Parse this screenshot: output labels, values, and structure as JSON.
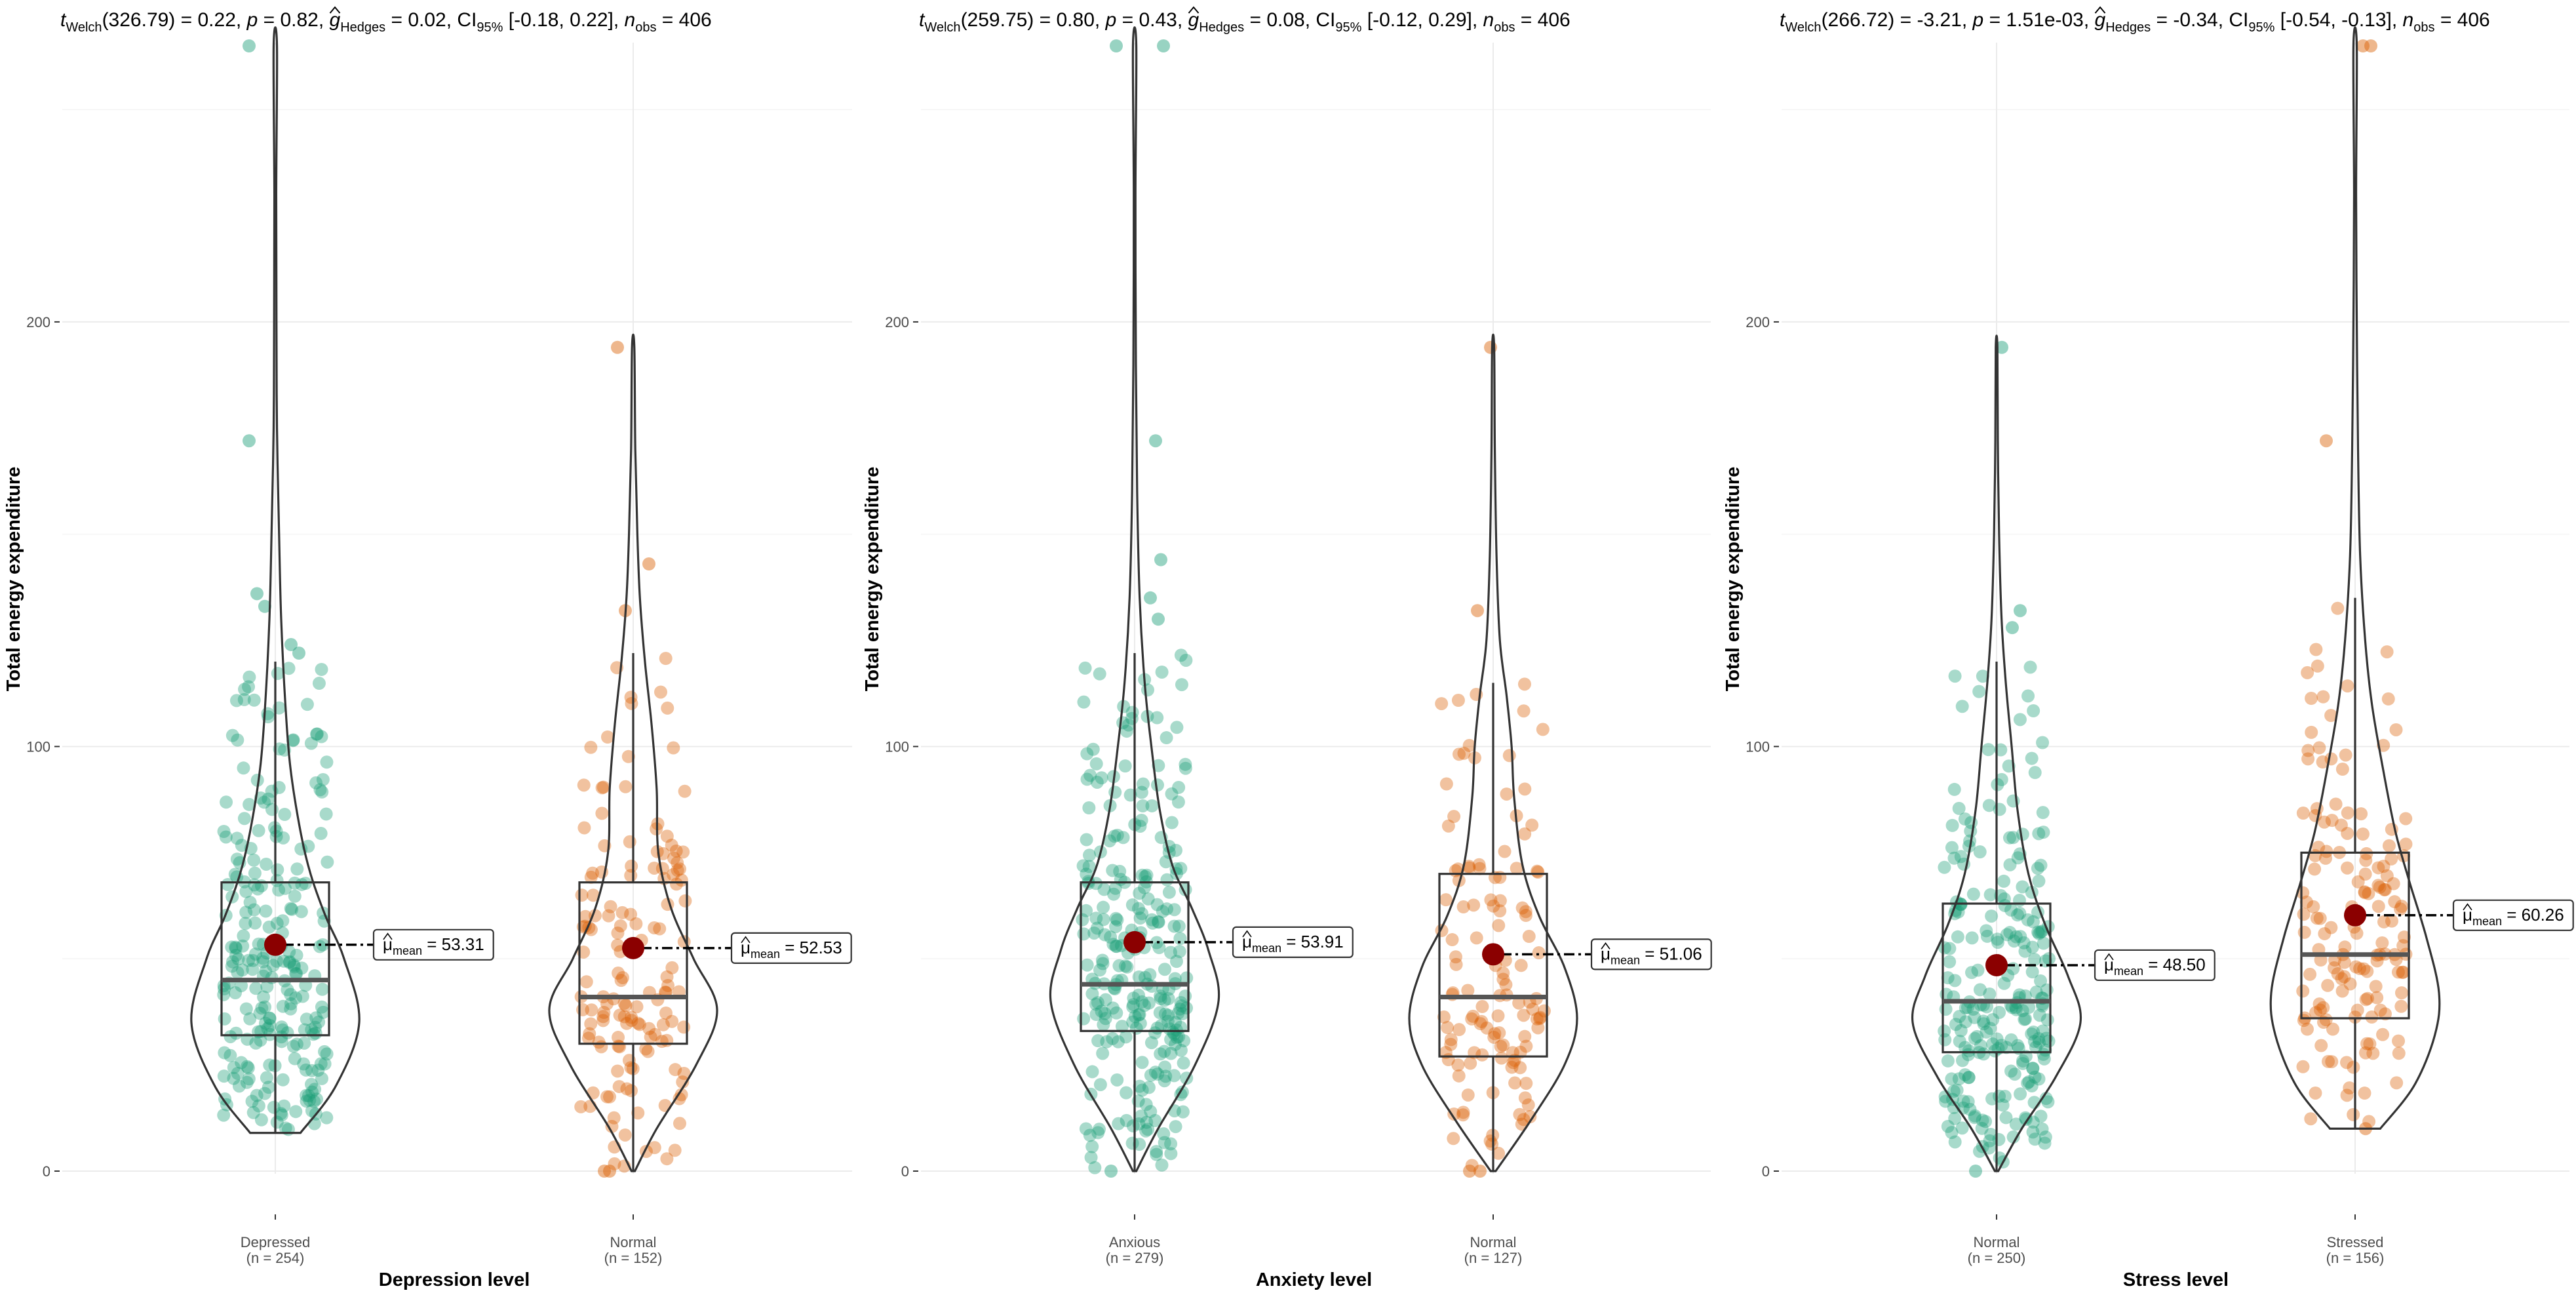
{
  "figure": {
    "y_axis_label": "Total energy expenditure"
  },
  "colors": {
    "group1": "#1b9e77",
    "group2": "#d95f02",
    "mean_point": "#8b0000",
    "grid": "#ebebeb"
  },
  "chart_data": [
    {
      "type": "violin-box-scatter",
      "title": {
        "t_label": "t",
        "t_sub": "Welch",
        "t_value": "(326.79) = 0.22, ",
        "p_label": "p",
        "p_value": " = 0.82, ",
        "g_label": "g",
        "g_sub": "Hedges",
        "g_value": " = 0.02, CI",
        "ci_sub": "95%",
        "ci_value": " [-0.18, 0.22], ",
        "n_label": "n",
        "n_sub": "obs",
        "n_value": " = 406"
      },
      "xlabel": "Depression level",
      "ylabel": "Total energy expenditure",
      "ylim": [
        0,
        265
      ],
      "yticks": [
        0,
        100,
        200
      ],
      "groups": [
        {
          "name": "Depressed",
          "n_label": "(n = 254)",
          "n": 254,
          "mean": 53.31,
          "mean_text": "53.31",
          "median": 45,
          "q1": 32,
          "q3": 68,
          "whisker_low": 9,
          "whisker_high": 120,
          "min": 9,
          "max": 265,
          "color": "#1b9e77",
          "outliers": [
            {
              "y": 265,
              "dx": -0.5
            },
            {
              "y": 172,
              "dx": -0.5
            },
            {
              "y": 136,
              "dx": -0.35
            },
            {
              "y": 133,
              "dx": -0.2
            },
            {
              "y": 124,
              "dx": 0.3
            },
            {
              "y": 122,
              "dx": 0.45
            }
          ],
          "density": [
            [
              9,
              0.3
            ],
            [
              20,
              0.72
            ],
            [
              35,
              1.0
            ],
            [
              50,
              0.82
            ],
            [
              60,
              0.6
            ],
            [
              70,
              0.42
            ],
            [
              80,
              0.3
            ],
            [
              95,
              0.18
            ],
            [
              110,
              0.12
            ],
            [
              130,
              0.07
            ],
            [
              150,
              0.045
            ],
            [
              175,
              0.02
            ],
            [
              200,
              0.014
            ],
            [
              230,
              0.011
            ],
            [
              265,
              0.02
            ]
          ]
        },
        {
          "name": "Normal",
          "n_label": "(n = 152)",
          "n": 152,
          "mean": 52.53,
          "mean_text": "52.53",
          "median": 41,
          "q1": 30,
          "q3": 68,
          "whisker_low": 0,
          "whisker_high": 122,
          "min": 0,
          "max": 194,
          "color": "#d95f02",
          "outliers": [
            {
              "y": 194,
              "dx": -0.3
            },
            {
              "y": 143,
              "dx": 0.3
            },
            {
              "y": 132,
              "dx": -0.15
            },
            {
              "y": 0,
              "dx": -0.55
            },
            {
              "y": 0,
              "dx": -0.45
            }
          ],
          "density": [
            [
              0,
              0.02
            ],
            [
              10,
              0.28
            ],
            [
              25,
              0.75
            ],
            [
              38,
              1.0
            ],
            [
              50,
              0.72
            ],
            [
              62,
              0.45
            ],
            [
              75,
              0.3
            ],
            [
              90,
              0.28
            ],
            [
              105,
              0.22
            ],
            [
              120,
              0.14
            ],
            [
              135,
              0.08
            ],
            [
              150,
              0.05
            ],
            [
              170,
              0.025
            ],
            [
              194,
              0.014
            ]
          ]
        }
      ]
    },
    {
      "type": "violin-box-scatter",
      "title": {
        "t_label": "t",
        "t_sub": "Welch",
        "t_value": "(259.75) = 0.80, ",
        "p_label": "p",
        "p_value": " = 0.43, ",
        "g_label": "g",
        "g_sub": "Hedges",
        "g_value": " = 0.08, CI",
        "ci_sub": "95%",
        "ci_value": " [-0.12, 0.29], ",
        "n_label": "n",
        "n_sub": "obs",
        "n_value": " = 406"
      },
      "xlabel": "Anxiety level",
      "ylabel": "Total energy expenditure",
      "ylim": [
        0,
        265
      ],
      "yticks": [
        0,
        100,
        200
      ],
      "groups": [
        {
          "name": "Anxious",
          "n_label": "(n = 279)",
          "n": 279,
          "mean": 53.91,
          "mean_text": "53.91",
          "median": 44,
          "q1": 33,
          "q3": 68,
          "whisker_low": 0,
          "whisker_high": 122,
          "min": 0,
          "max": 265,
          "color": "#1b9e77",
          "outliers": [
            {
              "y": 265,
              "dx": -0.35
            },
            {
              "y": 265,
              "dx": 0.55
            },
            {
              "y": 172,
              "dx": 0.4
            },
            {
              "y": 144,
              "dx": 0.5
            },
            {
              "y": 135,
              "dx": 0.3
            },
            {
              "y": 130,
              "dx": 0.45
            },
            {
              "y": 0,
              "dx": -0.45
            }
          ],
          "density": [
            [
              0,
              0.02
            ],
            [
              10,
              0.28
            ],
            [
              25,
              0.72
            ],
            [
              40,
              1.0
            ],
            [
              52,
              0.88
            ],
            [
              62,
              0.68
            ],
            [
              72,
              0.45
            ],
            [
              85,
              0.3
            ],
            [
              100,
              0.2
            ],
            [
              115,
              0.12
            ],
            [
              135,
              0.06
            ],
            [
              160,
              0.03
            ],
            [
              190,
              0.015
            ],
            [
              230,
              0.01
            ],
            [
              265,
              0.02
            ]
          ]
        },
        {
          "name": "Normal",
          "n_label": "(n = 127)",
          "n": 127,
          "mean": 51.06,
          "mean_text": "51.06",
          "median": 41,
          "q1": 27,
          "q3": 70,
          "whisker_low": 0,
          "whisker_high": 115,
          "min": 0,
          "max": 194,
          "color": "#d95f02",
          "outliers": [
            {
              "y": 194,
              "dx": -0.05
            },
            {
              "y": 132,
              "dx": -0.3
            },
            {
              "y": 0,
              "dx": -0.45
            },
            {
              "y": 0,
              "dx": -0.25
            }
          ],
          "density": [
            [
              0,
              0.03
            ],
            [
              12,
              0.45
            ],
            [
              25,
              0.85
            ],
            [
              36,
              1.0
            ],
            [
              48,
              0.85
            ],
            [
              60,
              0.55
            ],
            [
              72,
              0.35
            ],
            [
              88,
              0.25
            ],
            [
              100,
              0.22
            ],
            [
              112,
              0.16
            ],
            [
              125,
              0.08
            ],
            [
              145,
              0.04
            ],
            [
              170,
              0.02
            ],
            [
              194,
              0.012
            ]
          ]
        }
      ]
    },
    {
      "type": "violin-box-scatter",
      "title": {
        "t_label": "t",
        "t_sub": "Welch",
        "t_value": "(266.72) = -3.21, ",
        "p_label": "p",
        "p_value": " = 1.51e-03, ",
        "g_label": "g",
        "g_sub": "Hedges",
        "g_value": " = -0.34, CI",
        "ci_sub": "95%",
        "ci_value": " [-0.54, -0.13], ",
        "n_label": "n",
        "n_sub": "obs",
        "n_value": " = 406"
      },
      "xlabel": "Stress level",
      "ylabel": "Total energy expenditure",
      "ylim": [
        0,
        265
      ],
      "yticks": [
        0,
        100,
        200
      ],
      "groups": [
        {
          "name": "Normal",
          "n_label": "(n = 250)",
          "n": 250,
          "mean": 48.5,
          "mean_text": "48.50",
          "median": 40,
          "q1": 28,
          "q3": 63,
          "whisker_low": 0,
          "whisker_high": 120,
          "min": 0,
          "max": 194,
          "color": "#1b9e77",
          "outliers": [
            {
              "y": 194,
              "dx": 0.1
            },
            {
              "y": 132,
              "dx": 0.45
            },
            {
              "y": 128,
              "dx": 0.3
            },
            {
              "y": 0,
              "dx": -0.4
            }
          ],
          "density": [
            [
              0,
              0.02
            ],
            [
              10,
              0.3
            ],
            [
              22,
              0.7
            ],
            [
              35,
              1.0
            ],
            [
              46,
              0.85
            ],
            [
              58,
              0.58
            ],
            [
              70,
              0.38
            ],
            [
              85,
              0.25
            ],
            [
              100,
              0.18
            ],
            [
              115,
              0.11
            ],
            [
              130,
              0.06
            ],
            [
              150,
              0.03
            ],
            [
              172,
              0.015
            ],
            [
              194,
              0.01
            ]
          ]
        },
        {
          "name": "Stressed",
          "n_label": "(n = 156)",
          "n": 156,
          "mean": 60.26,
          "mean_text": "60.26",
          "median": 51,
          "q1": 36,
          "q3": 75,
          "whisker_low": 10,
          "whisker_high": 135,
          "min": 10,
          "max": 265,
          "color": "#d95f02",
          "outliers": [
            {
              "y": 265,
              "dx": 0.15
            },
            {
              "y": 265,
              "dx": 0.3
            },
            {
              "y": 172,
              "dx": -0.55
            },
            {
              "y": 10,
              "dx": 0.2
            }
          ],
          "density": [
            [
              10,
              0.3
            ],
            [
              20,
              0.7
            ],
            [
              32,
              0.95
            ],
            [
              42,
              1.0
            ],
            [
              55,
              0.85
            ],
            [
              68,
              0.65
            ],
            [
              80,
              0.48
            ],
            [
              95,
              0.33
            ],
            [
              110,
              0.2
            ],
            [
              125,
              0.12
            ],
            [
              145,
              0.06
            ],
            [
              170,
              0.035
            ],
            [
              200,
              0.02
            ],
            [
              230,
              0.012
            ],
            [
              265,
              0.02
            ]
          ]
        }
      ]
    }
  ]
}
